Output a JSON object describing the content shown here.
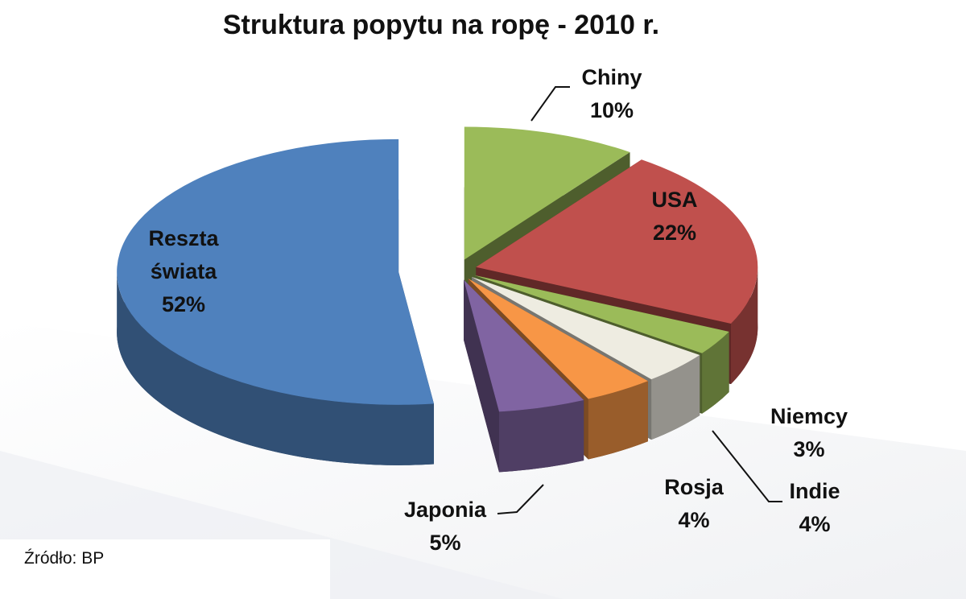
{
  "chart_data": {
    "type": "pie3d",
    "title": "Struktura popytu na ropę - 2010 r.",
    "categories": [
      "Chiny",
      "USA",
      "Niemcy",
      "Indie",
      "Rosja",
      "Japonia",
      "Reszta świata"
    ],
    "values": [
      10,
      22,
      3,
      4,
      4,
      5,
      52
    ],
    "value_labels": [
      "10%",
      "22%",
      "3%",
      "4%",
      "4%",
      "5%",
      "52%"
    ],
    "colors": [
      "#9bbb59",
      "#c0504d",
      "#9bbb59",
      "#eeece1",
      "#f79646",
      "#8064a2",
      "#4f81bd"
    ],
    "source": "Źródło: BP"
  }
}
